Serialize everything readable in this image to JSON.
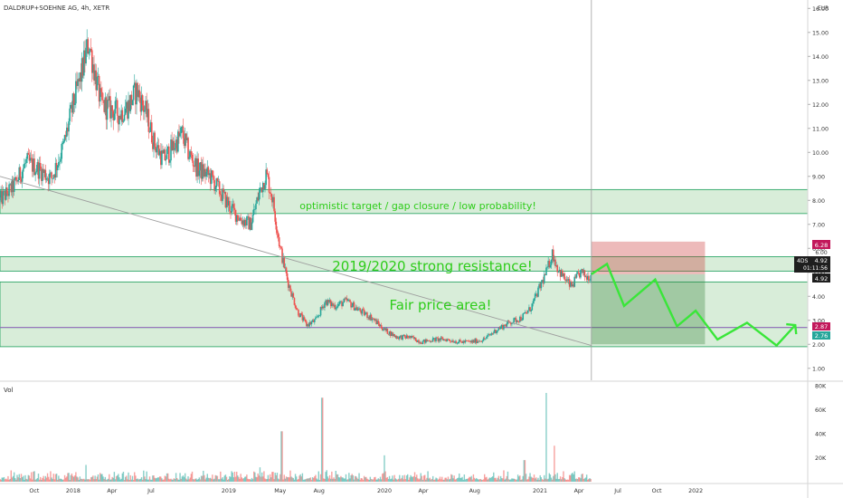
{
  "header": {
    "title": "DALDRUP+SOEHNE AG, 4h, XETR",
    "currency": "EUR"
  },
  "volume_label": "Vol",
  "colors": {
    "up": "#26a69a",
    "down": "#ef5350",
    "zone_fill": "#4caf50",
    "zone_border": "#1b9e5a",
    "projection": "#39e639",
    "text_green": "#2ecc1a",
    "trendline": "#9e9e9e",
    "crosshair": "#9e9e9e",
    "loss_zone": "#c62828",
    "profit_zone": "#2e7d32",
    "price_tag": "#1e1e1e",
    "stop_tag": "#c2185b",
    "target_tag": "#26a69a"
  },
  "annotations": {
    "optimistic": "optimistic target / gap closure / low probability!",
    "resistance": "2019/2020 strong resistance!",
    "fair": "Fair price area!"
  },
  "price_tags": {
    "stop": "6.28",
    "stop_sub": "6.00",
    "symbol": "4DS",
    "current": "4.92",
    "countdown": "01:11:56",
    "entry": "4.92",
    "target_a": "2.87",
    "target_b": "2.76"
  },
  "chart_data": {
    "type": "candlestick",
    "title": "DALDRUP+SOEHNE AG, 4h, XETR",
    "ylabel": "EUR",
    "ylim": [
      0.5,
      16.2
    ],
    "price_ticks": [
      "1.00",
      "2.00",
      "3.00",
      "4.00",
      "5.00",
      "6.00",
      "7.00",
      "8.00",
      "9.00",
      "10.00",
      "11.00",
      "12.00",
      "13.00",
      "14.00",
      "15.00",
      "16.00"
    ],
    "x_ticks": [
      {
        "label": "Oct",
        "t": 2017.75
      },
      {
        "label": "2018",
        "t": 2018.0
      },
      {
        "label": "Apr",
        "t": 2018.25
      },
      {
        "label": "Jul",
        "t": 2018.5
      },
      {
        "label": "2019",
        "t": 2019.0
      },
      {
        "label": "May",
        "t": 2019.33
      },
      {
        "label": "Aug",
        "t": 2019.58
      },
      {
        "label": "2020",
        "t": 2020.0
      },
      {
        "label": "Apr",
        "t": 2020.25
      },
      {
        "label": "Aug",
        "t": 2020.58
      },
      {
        "label": "2021",
        "t": 2021.0
      },
      {
        "label": "Apr",
        "t": 2021.25
      },
      {
        "label": "Jul",
        "t": 2021.5
      },
      {
        "label": "Oct",
        "t": 2021.75
      },
      {
        "label": "2022",
        "t": 2022.0
      }
    ],
    "xlim": [
      2017.53,
      2022.72
    ],
    "price_path": [
      [
        2017.53,
        8.0
      ],
      [
        2017.62,
        8.6
      ],
      [
        2017.7,
        9.6
      ],
      [
        2017.78,
        9.3
      ],
      [
        2017.86,
        8.9
      ],
      [
        2017.94,
        10.3
      ],
      [
        2018.0,
        12.0
      ],
      [
        2018.05,
        13.2
      ],
      [
        2018.1,
        14.6
      ],
      [
        2018.13,
        13.6
      ],
      [
        2018.18,
        12.0
      ],
      [
        2018.24,
        11.8
      ],
      [
        2018.3,
        11.6
      ],
      [
        2018.36,
        12.0
      ],
      [
        2018.41,
        12.6
      ],
      [
        2018.47,
        11.6
      ],
      [
        2018.52,
        10.4
      ],
      [
        2018.58,
        9.7
      ],
      [
        2018.64,
        10.2
      ],
      [
        2018.7,
        10.8
      ],
      [
        2018.74,
        10.0
      ],
      [
        2018.8,
        9.3
      ],
      [
        2018.88,
        9.0
      ],
      [
        2018.95,
        8.3
      ],
      [
        2019.02,
        7.6
      ],
      [
        2019.08,
        7.2
      ],
      [
        2019.14,
        7.0
      ],
      [
        2019.2,
        8.4
      ],
      [
        2019.24,
        9.1
      ],
      [
        2019.28,
        8.1
      ],
      [
        2019.33,
        6.0
      ],
      [
        2019.38,
        4.6
      ],
      [
        2019.44,
        3.4
      ],
      [
        2019.5,
        2.8
      ],
      [
        2019.56,
        3.0
      ],
      [
        2019.62,
        3.8
      ],
      [
        2019.68,
        3.6
      ],
      [
        2019.76,
        3.8
      ],
      [
        2019.84,
        3.4
      ],
      [
        2019.92,
        3.1
      ],
      [
        2020.0,
        2.6
      ],
      [
        2020.08,
        2.3
      ],
      [
        2020.16,
        2.3
      ],
      [
        2020.24,
        2.1
      ],
      [
        2020.32,
        2.2
      ],
      [
        2020.4,
        2.2
      ],
      [
        2020.48,
        2.1
      ],
      [
        2020.56,
        2.1
      ],
      [
        2020.64,
        2.2
      ],
      [
        2020.72,
        2.6
      ],
      [
        2020.8,
        2.9
      ],
      [
        2020.88,
        3.1
      ],
      [
        2020.94,
        3.5
      ],
      [
        2021.0,
        4.4
      ],
      [
        2021.04,
        5.0
      ],
      [
        2021.08,
        5.8
      ],
      [
        2021.11,
        5.2
      ],
      [
        2021.15,
        4.8
      ],
      [
        2021.2,
        4.4
      ],
      [
        2021.26,
        5.0
      ],
      [
        2021.3,
        4.8
      ],
      [
        2021.33,
        4.9
      ]
    ],
    "zones": [
      {
        "label": "optimistic target / gap closure / low probability!",
        "y0": 7.45,
        "y1": 8.45
      },
      {
        "label": "2019/2020 strong resistance!",
        "y0": 5.05,
        "y1": 5.65
      },
      {
        "label": "Fair price area!",
        "y0": 2.7,
        "y1": 4.6
      },
      {
        "label": "",
        "y0": 1.9,
        "y1": 2.7
      }
    ],
    "trendline": [
      [
        2017.53,
        9.0
      ],
      [
        2021.33,
        1.95
      ]
    ],
    "crosshair_x": 2021.33,
    "projection_path": [
      [
        2021.33,
        4.92
      ],
      [
        2021.43,
        5.35
      ],
      [
        2021.54,
        3.6
      ],
      [
        2021.74,
        4.7
      ],
      [
        2021.88,
        2.75
      ],
      [
        2022.0,
        3.4
      ],
      [
        2022.14,
        2.2
      ],
      [
        2022.33,
        2.9
      ],
      [
        2022.52,
        1.95
      ],
      [
        2022.64,
        2.8
      ]
    ],
    "position": {
      "entry": 4.92,
      "stop": 6.28,
      "target": 2.0,
      "t0": 2021.33,
      "t1": 2022.06
    },
    "volume": {
      "ylim": [
        0,
        80000
      ],
      "ticks": [
        "20K",
        "40K",
        "60K",
        "80K"
      ],
      "spikes": [
        [
          2019.34,
          42000
        ],
        [
          2019.6,
          70000
        ],
        [
          2020.0,
          22000
        ],
        [
          2021.04,
          74000
        ],
        [
          2021.09,
          30000
        ],
        [
          2018.08,
          14000
        ],
        [
          2019.2,
          12000
        ],
        [
          2020.9,
          18000
        ]
      ]
    }
  }
}
